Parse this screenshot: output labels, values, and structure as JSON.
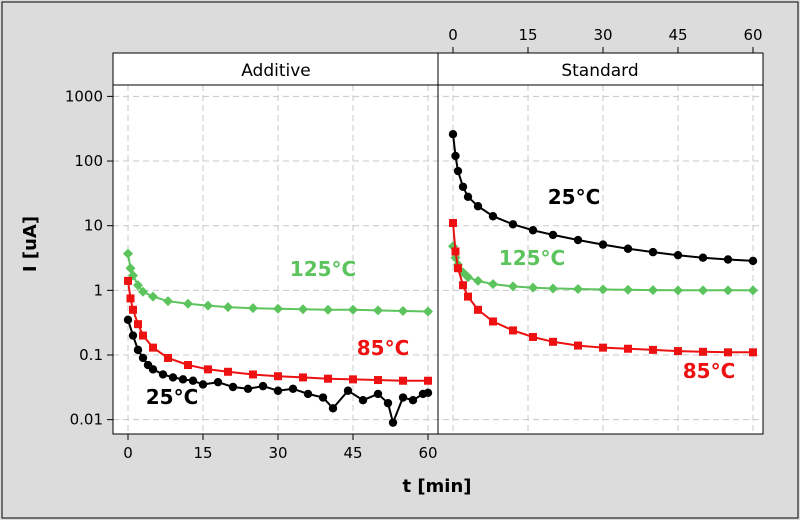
{
  "chart_data": {
    "type": "scatter",
    "xlabel": "t [min]",
    "ylabel": "I [uA]",
    "y_scale": "log",
    "ylim": [
      0.006,
      1500
    ],
    "y_ticks": [
      1000,
      100,
      10,
      1,
      0.1,
      0.01
    ],
    "y_tick_labels": [
      "1000",
      "100",
      "10",
      "1",
      "0.1",
      "0.01"
    ],
    "x_ticks": [
      0,
      15,
      30,
      45,
      60
    ],
    "x_tick_labels": [
      "0",
      "15",
      "30",
      "45",
      "60"
    ],
    "grid": true,
    "colors": {
      "25C": "#000000",
      "85C": "#ee1111",
      "125C": "#5cc45c"
    },
    "panels": [
      {
        "title": "Additive",
        "xlim": [
          -3,
          62
        ],
        "series": [
          {
            "name": "125°C",
            "color": "#5cc45c",
            "marker": "diamond",
            "x": [
              0,
              0.5,
              1,
              2,
              3,
              5,
              8,
              12,
              16,
              20,
              25,
              30,
              35,
              40,
              45,
              50,
              55,
              60
            ],
            "values": [
              3.7,
              2.2,
              1.7,
              1.2,
              0.95,
              0.8,
              0.68,
              0.62,
              0.58,
              0.55,
              0.53,
              0.52,
              0.51,
              0.5,
              0.5,
              0.49,
              0.48,
              0.47
            ]
          },
          {
            "name": "85°C",
            "color": "#ee1111",
            "marker": "square",
            "x": [
              0,
              0.5,
              1,
              2,
              3,
              5,
              8,
              12,
              16,
              20,
              25,
              30,
              35,
              40,
              45,
              50,
              55,
              60
            ],
            "values": [
              1.4,
              0.75,
              0.5,
              0.3,
              0.2,
              0.13,
              0.09,
              0.07,
              0.06,
              0.055,
              0.05,
              0.047,
              0.045,
              0.043,
              0.042,
              0.041,
              0.04,
              0.04
            ]
          },
          {
            "name": "25°C",
            "color": "#000000",
            "marker": "circle",
            "x": [
              0,
              1,
              2,
              3,
              4,
              5,
              7,
              9,
              11,
              13,
              15,
              18,
              21,
              24,
              27,
              30,
              33,
              36,
              39,
              41,
              44,
              47,
              50,
              52,
              53,
              55,
              57,
              59,
              60
            ],
            "values": [
              0.35,
              0.2,
              0.12,
              0.09,
              0.07,
              0.06,
              0.05,
              0.045,
              0.042,
              0.04,
              0.035,
              0.038,
              0.032,
              0.03,
              0.033,
              0.028,
              0.03,
              0.025,
              0.022,
              0.015,
              0.028,
              0.02,
              0.025,
              0.018,
              0.009,
              0.022,
              0.02,
              0.025,
              0.026
            ]
          }
        ],
        "annotations": [
          {
            "text": "125°C",
            "color": "#5cc45c"
          },
          {
            "text": "85°C",
            "color": "#ee1111"
          },
          {
            "text": "25°C",
            "color": "#000000"
          }
        ]
      },
      {
        "title": "Standard",
        "xlim": [
          -3,
          62
        ],
        "series": [
          {
            "name": "25°C",
            "color": "#000000",
            "marker": "circle",
            "x": [
              0,
              0.5,
              1,
              2,
              3,
              5,
              8,
              12,
              16,
              20,
              25,
              30,
              35,
              40,
              45,
              50,
              55,
              60
            ],
            "values": [
              260,
              120,
              70,
              40,
              28,
              20,
              14,
              10.5,
              8.5,
              7.2,
              6,
              5.1,
              4.4,
              3.9,
              3.5,
              3.2,
              3.0,
              2.85
            ]
          },
          {
            "name": "125°C",
            "color": "#5cc45c",
            "marker": "diamond",
            "x": [
              0,
              0.5,
              1,
              2,
              3,
              5,
              8,
              12,
              16,
              20,
              25,
              30,
              35,
              40,
              45,
              50,
              55,
              60
            ],
            "values": [
              4.8,
              3.2,
              2.5,
              1.9,
              1.6,
              1.4,
              1.25,
              1.15,
              1.1,
              1.07,
              1.05,
              1.03,
              1.02,
              1.01,
              1.0,
              1.0,
              1.0,
              1.0
            ]
          },
          {
            "name": "85°C",
            "color": "#ee1111",
            "marker": "square",
            "x": [
              0,
              0.5,
              1,
              2,
              3,
              5,
              8,
              12,
              16,
              20,
              25,
              30,
              35,
              40,
              45,
              50,
              55,
              60
            ],
            "values": [
              11,
              4,
              2.2,
              1.2,
              0.8,
              0.5,
              0.33,
              0.24,
              0.19,
              0.16,
              0.14,
              0.13,
              0.125,
              0.12,
              0.115,
              0.112,
              0.11,
              0.11
            ]
          }
        ],
        "annotations": [
          {
            "text": "25°C",
            "color": "#000000"
          },
          {
            "text": "125°C",
            "color": "#5cc45c"
          },
          {
            "text": "85°C",
            "color": "#ee1111"
          }
        ]
      }
    ]
  }
}
